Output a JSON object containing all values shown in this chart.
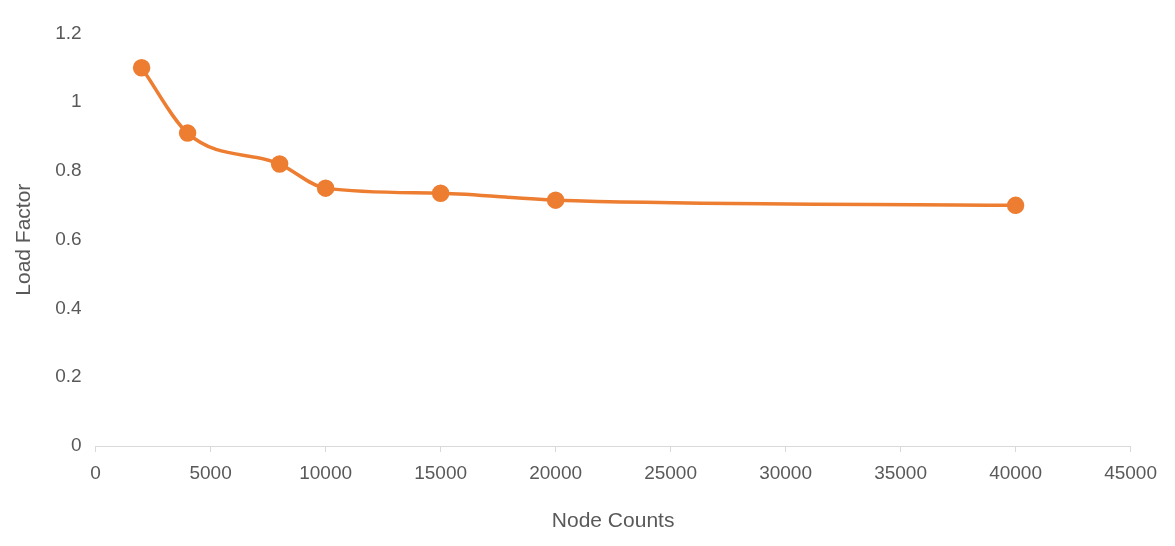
{
  "chart_data": {
    "type": "line",
    "xlabel": "Node Counts",
    "ylabel": "Load Factor",
    "x": [
      2000,
      4000,
      8000,
      10000,
      15000,
      20000,
      40000
    ],
    "series": [
      {
        "color": "#ed7d31",
        "values": [
          1.1,
          0.91,
          0.82,
          0.75,
          0.735,
          0.715,
          0.7
        ]
      }
    ],
    "xlim": [
      0,
      45000
    ],
    "xticks": [
      0,
      5000,
      10000,
      15000,
      20000,
      25000,
      30000,
      35000,
      40000,
      45000
    ],
    "ylim": [
      0,
      1.2
    ],
    "yticks": [
      0,
      0.2,
      0.4,
      0.6,
      0.8,
      1,
      1.2
    ],
    "grid": false,
    "legend": false,
    "marker": "circle",
    "line_style": "solid"
  }
}
